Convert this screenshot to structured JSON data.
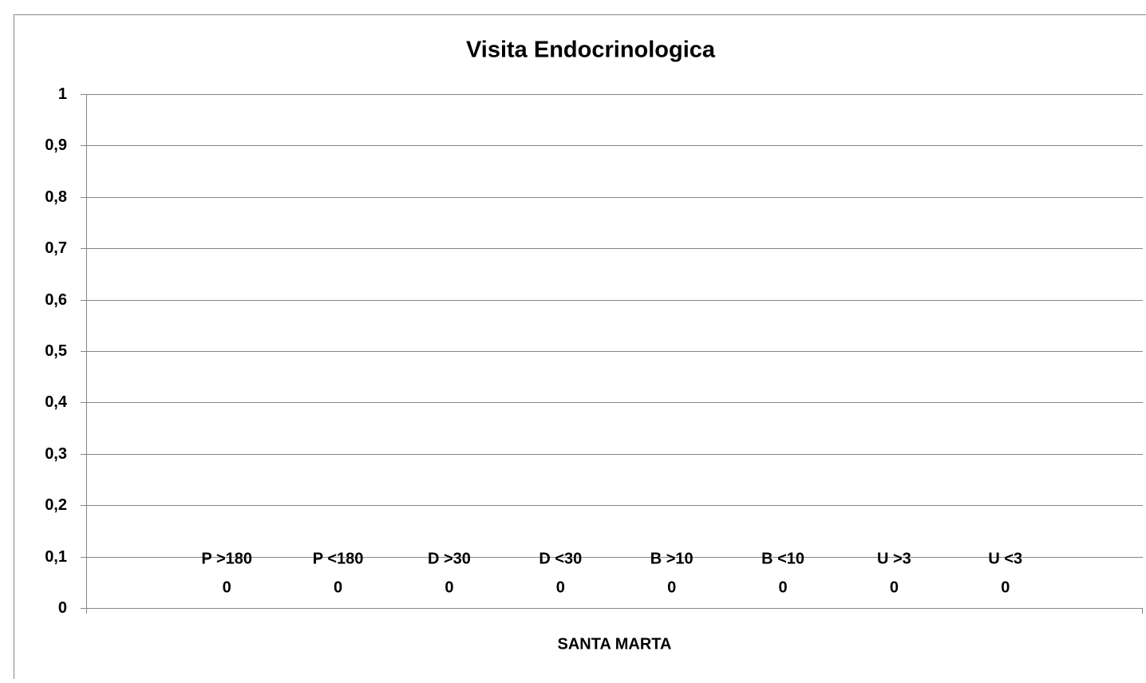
{
  "chart_data": {
    "type": "bar",
    "title": "Visita Endocrinologica",
    "categories": [
      "SANTA MARTA"
    ],
    "series": [
      {
        "name": "P  >180",
        "values": [
          0
        ]
      },
      {
        "name": "P  <180",
        "values": [
          0
        ]
      },
      {
        "name": "D  >30",
        "values": [
          0
        ]
      },
      {
        "name": "D  <30",
        "values": [
          0
        ]
      },
      {
        "name": "B  >10",
        "values": [
          0
        ]
      },
      {
        "name": "B  <10",
        "values": [
          0
        ]
      },
      {
        "name": "U  >3",
        "values": [
          0
        ]
      },
      {
        "name": "U  <3",
        "values": [
          0
        ]
      }
    ],
    "ylim": [
      0,
      1
    ],
    "yticks": [
      0,
      {
        "value": 0.1,
        "label": "0,1"
      },
      {
        "value": 0.2,
        "label": "0,2"
      },
      {
        "value": 0.3,
        "label": "0,3"
      },
      {
        "value": 0.4,
        "label": "0,4"
      },
      {
        "value": 0.5,
        "label": "0,5"
      },
      {
        "value": 0.6,
        "label": "0,6"
      },
      {
        "value": 0.7,
        "label": "0,7"
      },
      {
        "value": 0.8,
        "label": "0,8"
      },
      {
        "value": 0.9,
        "label": "0,9"
      },
      1
    ],
    "grid": true
  }
}
